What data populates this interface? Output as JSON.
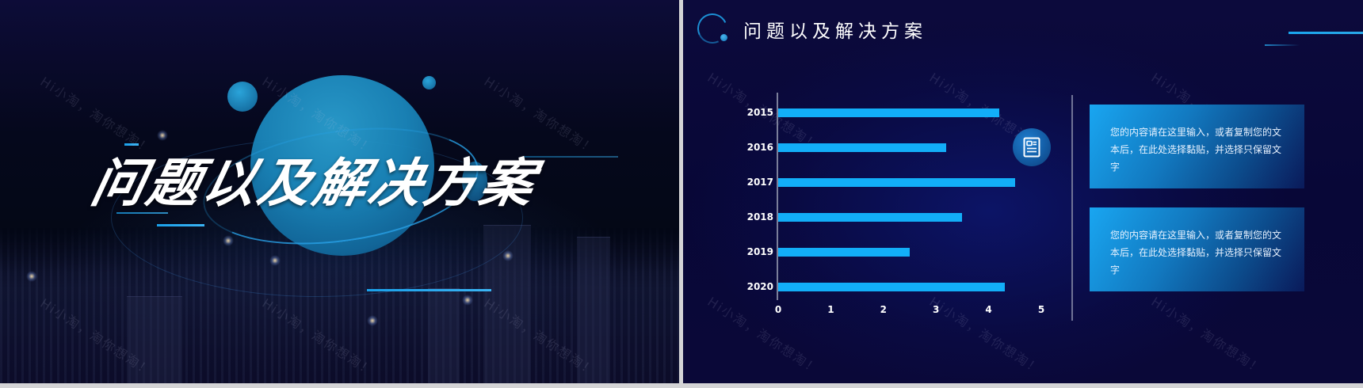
{
  "left_slide": {
    "title": "问题以及解决方案",
    "watermark": "Hi小淘，淘你想淘！"
  },
  "right_slide": {
    "header_title": "问题以及解决方案",
    "watermark": "Hi小淘，淘你想淘！",
    "icon": "document-icon",
    "text_boxes": [
      {
        "text": "您的内容请在这里输入，或者复制您的文本后，在此处选择黏贴，并选择只保留文字"
      },
      {
        "text": "您的内容请在这里输入，或者复制您的文本后，在此处选择黏贴，并选择只保留文字"
      }
    ],
    "colors": {
      "bar": "#12aef8",
      "background": "#0a0a3a",
      "accent": "#1aa6ee"
    }
  },
  "chart_data": {
    "type": "bar",
    "orientation": "horizontal",
    "title": "",
    "xlabel": "",
    "ylabel": "",
    "categories": [
      "2015",
      "2016",
      "2017",
      "2018",
      "2019",
      "2020"
    ],
    "values": [
      4.2,
      3.2,
      4.5,
      3.5,
      2.5,
      4.3
    ],
    "xlim": [
      0,
      5
    ],
    "x_ticks": [
      "0",
      "1",
      "2",
      "3",
      "4",
      "5"
    ],
    "grid": false,
    "legend": null
  }
}
